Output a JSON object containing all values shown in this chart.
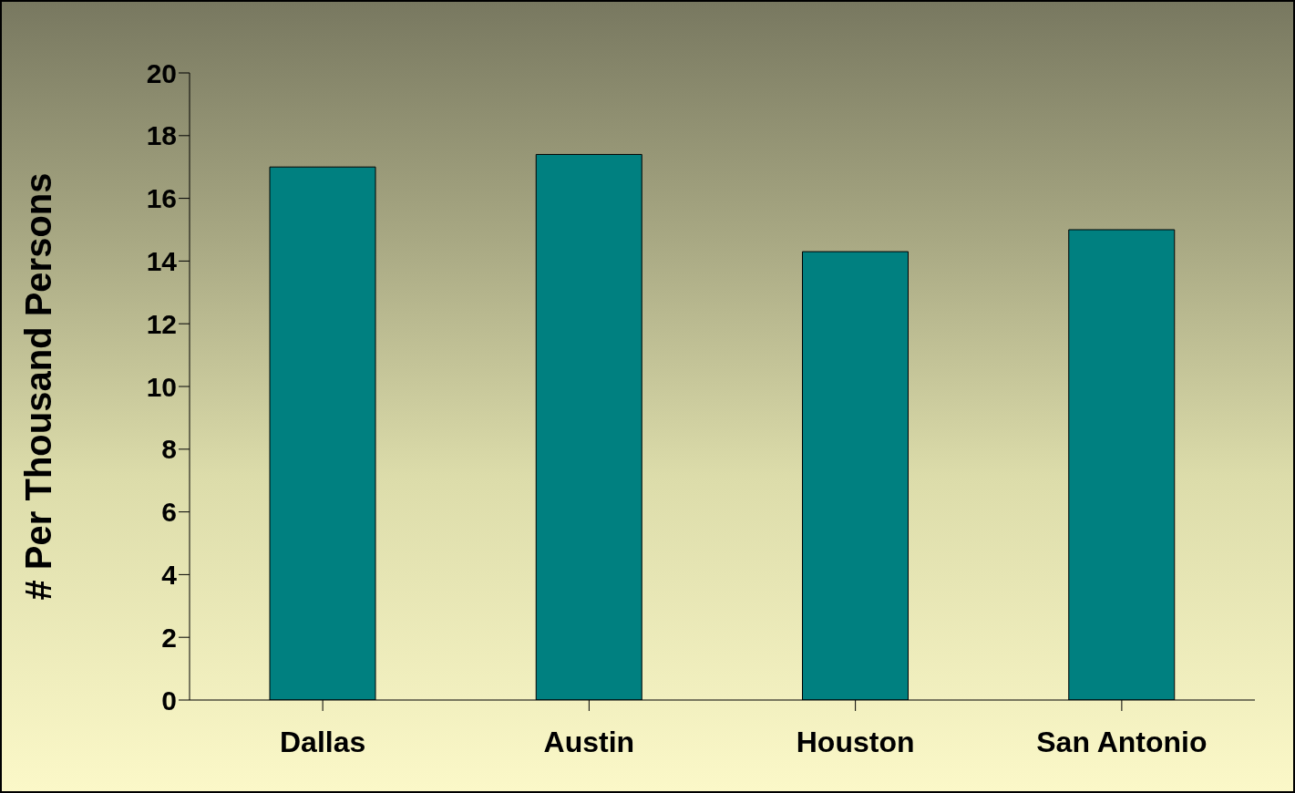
{
  "chart_data": {
    "type": "bar",
    "ylabel": "# Per Thousand Persons",
    "categories": [
      "Dallas",
      "Austin",
      "Houston",
      "San Antonio"
    ],
    "values": [
      17.0,
      17.4,
      14.3,
      15.0
    ],
    "color": "#008080",
    "ylim": [
      0,
      20
    ],
    "yticks": [
      0,
      2,
      4,
      6,
      8,
      10,
      12,
      14,
      16,
      18,
      20
    ],
    "grid": false,
    "legend": false
  }
}
